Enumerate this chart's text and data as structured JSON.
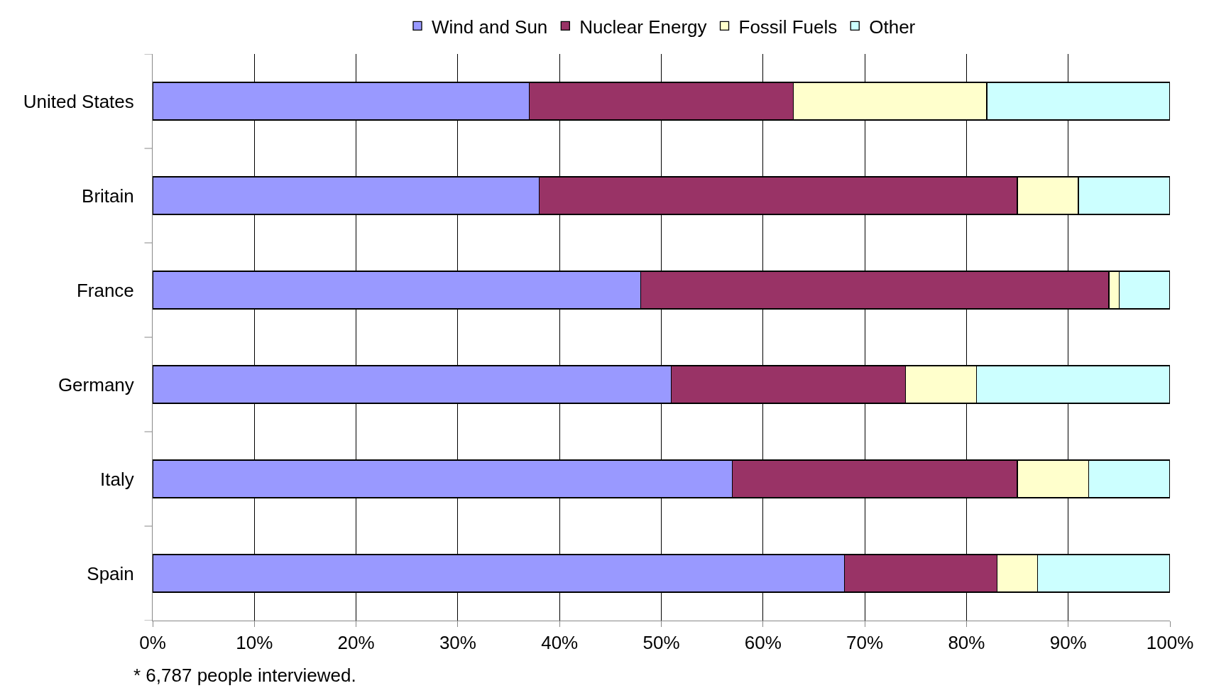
{
  "chart_data": {
    "type": "bar",
    "orientation": "horizontal",
    "stacked": true,
    "categories": [
      "United States",
      "Britain",
      "France",
      "Germany",
      "Italy",
      "Spain"
    ],
    "series": [
      {
        "name": "Wind and Sun",
        "color": "#9999ff",
        "values": [
          37,
          38,
          48,
          51,
          57,
          68
        ]
      },
      {
        "name": "Nuclear Energy",
        "color": "#993366",
        "values": [
          26,
          47,
          46,
          23,
          28,
          15
        ]
      },
      {
        "name": "Fossil Fuels",
        "color": "#ffffcc",
        "values": [
          19,
          6,
          1,
          7,
          7,
          4
        ]
      },
      {
        "name": "Other",
        "color": "#ccffff",
        "values": [
          18,
          9,
          5,
          19,
          8,
          13
        ]
      }
    ],
    "xlim": [
      0,
      100
    ],
    "xticks": [
      {
        "value": 0,
        "label": "0%"
      },
      {
        "value": 10,
        "label": "10%"
      },
      {
        "value": 20,
        "label": "20%"
      },
      {
        "value": 30,
        "label": "30%"
      },
      {
        "value": 40,
        "label": "40%"
      },
      {
        "value": 50,
        "label": "50%"
      },
      {
        "value": 60,
        "label": "60%"
      },
      {
        "value": 70,
        "label": "70%"
      },
      {
        "value": 80,
        "label": "80%"
      },
      {
        "value": 90,
        "label": "90%"
      },
      {
        "value": 100,
        "label": "100%"
      }
    ],
    "grid": "x",
    "legend": "top",
    "annotations": [
      "* 6,787 people interviewed."
    ]
  }
}
